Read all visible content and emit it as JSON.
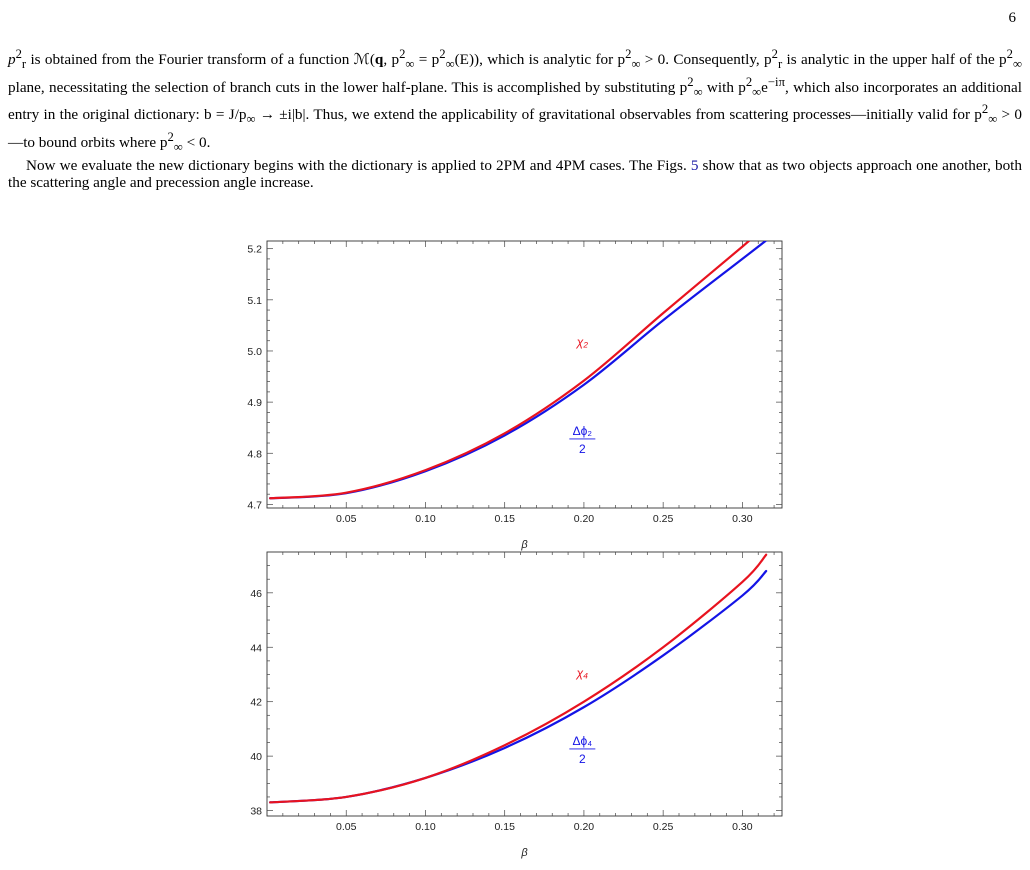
{
  "page": {
    "number": "6"
  },
  "body_text": {
    "p1_parts": [
      "p",
      "2",
      "r",
      " is obtained from the Fourier transform of a function ℳ(",
      "q",
      ", p",
      "2",
      "∞",
      " = p",
      "2",
      "∞",
      "(E)), which is analytic for p",
      "2",
      "∞",
      " > 0. Consequently, p",
      "2",
      "r",
      " is analytic in the upper half of the p",
      "2",
      "∞",
      " plane, necessitating the selection of branch cuts in the lower half-plane. This is accomplished by substituting p",
      "2",
      "∞",
      " with p",
      "2",
      "∞",
      "e",
      "−iπ",
      ", which also incorporates an additional entry in the original dictionary: b = J/p",
      "∞",
      " → ±i|b|. Thus, we extend the applicability of gravitational observables from scattering processes—initially valid for p",
      "2",
      "∞",
      " > 0—to bound orbits where p",
      "2",
      "∞",
      " < 0."
    ],
    "p2_before": "Now we evaluate the new dictionary begins with the dictionary is applied to 2PM and 4PM cases. The Figs. ",
    "p2_ref": "5",
    "p2_after": " show that as two objects approach one another, both the scattering angle and precession angle increase."
  },
  "chart_data": [
    {
      "type": "line",
      "xlabel": "β",
      "ylabel": "",
      "xlim": [
        0.0,
        0.325
      ],
      "ylim": [
        4.693,
        5.215
      ],
      "xticks": [
        "0.05",
        "0.10",
        "0.15",
        "0.20",
        "0.25",
        "0.30"
      ],
      "yticks": [
        "4.7",
        "4.8",
        "4.9",
        "5.0",
        "5.1",
        "5.2"
      ],
      "grid": false,
      "series": [
        {
          "name": "χ2",
          "color": "#e8131f",
          "x": [
            0.002,
            0.05,
            0.1,
            0.15,
            0.2,
            0.25,
            0.3,
            0.311
          ],
          "y": [
            4.712,
            4.723,
            4.767,
            4.839,
            4.942,
            5.074,
            5.204,
            5.235
          ]
        },
        {
          "name": "Δφ2/2",
          "color": "#1414e6",
          "x": [
            0.002,
            0.05,
            0.1,
            0.15,
            0.2,
            0.25,
            0.3,
            0.315
          ],
          "y": [
            4.712,
            4.722,
            4.765,
            4.835,
            4.934,
            5.06,
            5.18,
            5.216
          ]
        }
      ],
      "annotations": [
        {
          "text": "χ₂",
          "color": "#e8131f",
          "x": 0.199,
          "y": 5.01
        },
        {
          "numerator": "Δϕ₂",
          "denominator": "2",
          "color": "#1414e6",
          "x": 0.199,
          "y": 4.83
        }
      ]
    },
    {
      "type": "line",
      "xlabel": "β",
      "ylabel": "",
      "xlim": [
        0.0,
        0.325
      ],
      "ylim": [
        37.8,
        47.5
      ],
      "xticks": [
        "0.05",
        "0.10",
        "0.15",
        "0.20",
        "0.25",
        "0.30"
      ],
      "yticks": [
        "38",
        "40",
        "42",
        "44",
        "46"
      ],
      "grid": false,
      "series": [
        {
          "name": "χ4",
          "color": "#e8131f",
          "x": [
            0.002,
            0.05,
            0.1,
            0.15,
            0.2,
            0.25,
            0.3,
            0.315
          ],
          "y": [
            38.3,
            38.5,
            39.2,
            40.4,
            42.0,
            44.0,
            46.4,
            47.4
          ]
        },
        {
          "name": "Δφ4/2",
          "color": "#1414e6",
          "x": [
            0.002,
            0.05,
            0.1,
            0.15,
            0.2,
            0.25,
            0.3,
            0.315
          ],
          "y": [
            38.3,
            38.5,
            39.2,
            40.3,
            41.8,
            43.7,
            45.9,
            46.8
          ]
        }
      ],
      "annotations": [
        {
          "text": "χ₄",
          "color": "#e8131f",
          "x": 0.199,
          "y": 42.9
        },
        {
          "numerator": "Δϕ₄",
          "denominator": "2",
          "color": "#1414e6",
          "x": 0.199,
          "y": 40.3
        }
      ]
    }
  ]
}
